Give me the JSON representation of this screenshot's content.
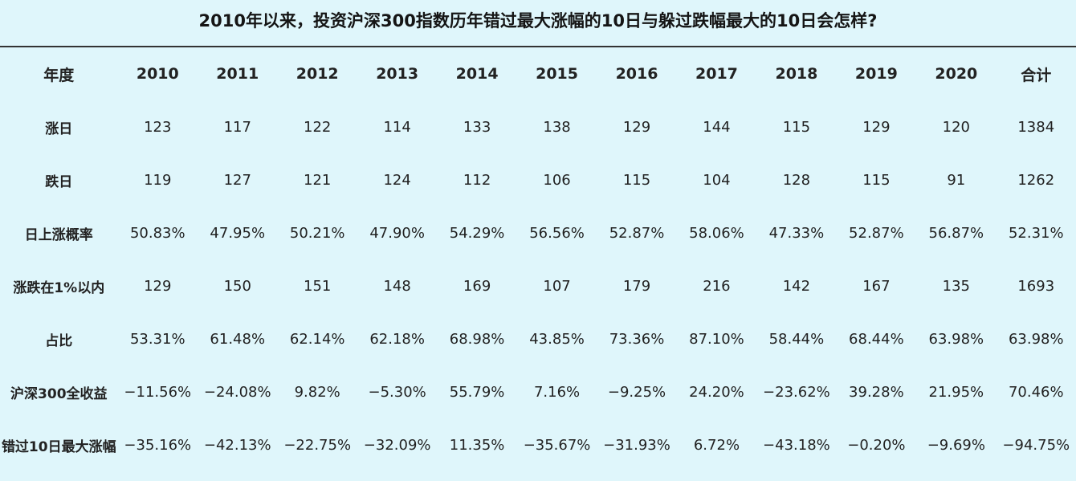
{
  "title": "2010年以来，投资沪深300指数历年错过最大涨幅的10日与躲过跌幅最大的10日会怎样?",
  "chart_data": {
    "type": "table",
    "title": "2010年以来，投资沪深300指数历年错过最大涨幅的10日与躲过跌幅最大的10日会怎样?",
    "columns": [
      "年度",
      "2010",
      "2011",
      "2012",
      "2013",
      "2014",
      "2015",
      "2016",
      "2017",
      "2018",
      "2019",
      "2020",
      "合计"
    ],
    "rows": [
      {
        "label": "涨日",
        "values": [
          "123",
          "117",
          "122",
          "114",
          "133",
          "138",
          "129",
          "144",
          "115",
          "129",
          "120",
          "1384"
        ]
      },
      {
        "label": "跌日",
        "values": [
          "119",
          "127",
          "121",
          "124",
          "112",
          "106",
          "115",
          "104",
          "128",
          "115",
          "91",
          "1262"
        ]
      },
      {
        "label": "日上涨概率",
        "values": [
          "50.83%",
          "47.95%",
          "50.21%",
          "47.90%",
          "54.29%",
          "56.56%",
          "52.87%",
          "58.06%",
          "47.33%",
          "52.87%",
          "56.87%",
          "52.31%"
        ]
      },
      {
        "label": "涨跌在1%以内",
        "values": [
          "129",
          "150",
          "151",
          "148",
          "169",
          "107",
          "179",
          "216",
          "142",
          "167",
          "135",
          "1693"
        ]
      },
      {
        "label": "占比",
        "values": [
          "53.31%",
          "61.48%",
          "62.14%",
          "62.18%",
          "68.98%",
          "43.85%",
          "73.36%",
          "87.10%",
          "58.44%",
          "68.44%",
          "63.98%",
          "63.98%"
        ]
      },
      {
        "label": "沪深300全收益",
        "values": [
          "−11.56%",
          "−24.08%",
          "9.82%",
          "−5.30%",
          "55.79%",
          "7.16%",
          "−9.25%",
          "24.20%",
          "−23.62%",
          "39.28%",
          "21.95%",
          "70.46%"
        ]
      },
      {
        "label": "错过10日最大涨幅",
        "values": [
          "−35.16%",
          "−42.13%",
          "−22.75%",
          "−32.09%",
          "11.35%",
          "−35.67%",
          "−31.93%",
          "6.72%",
          "−43.18%",
          "−0.20%",
          "−9.69%",
          "−94.75%"
        ]
      }
    ]
  }
}
